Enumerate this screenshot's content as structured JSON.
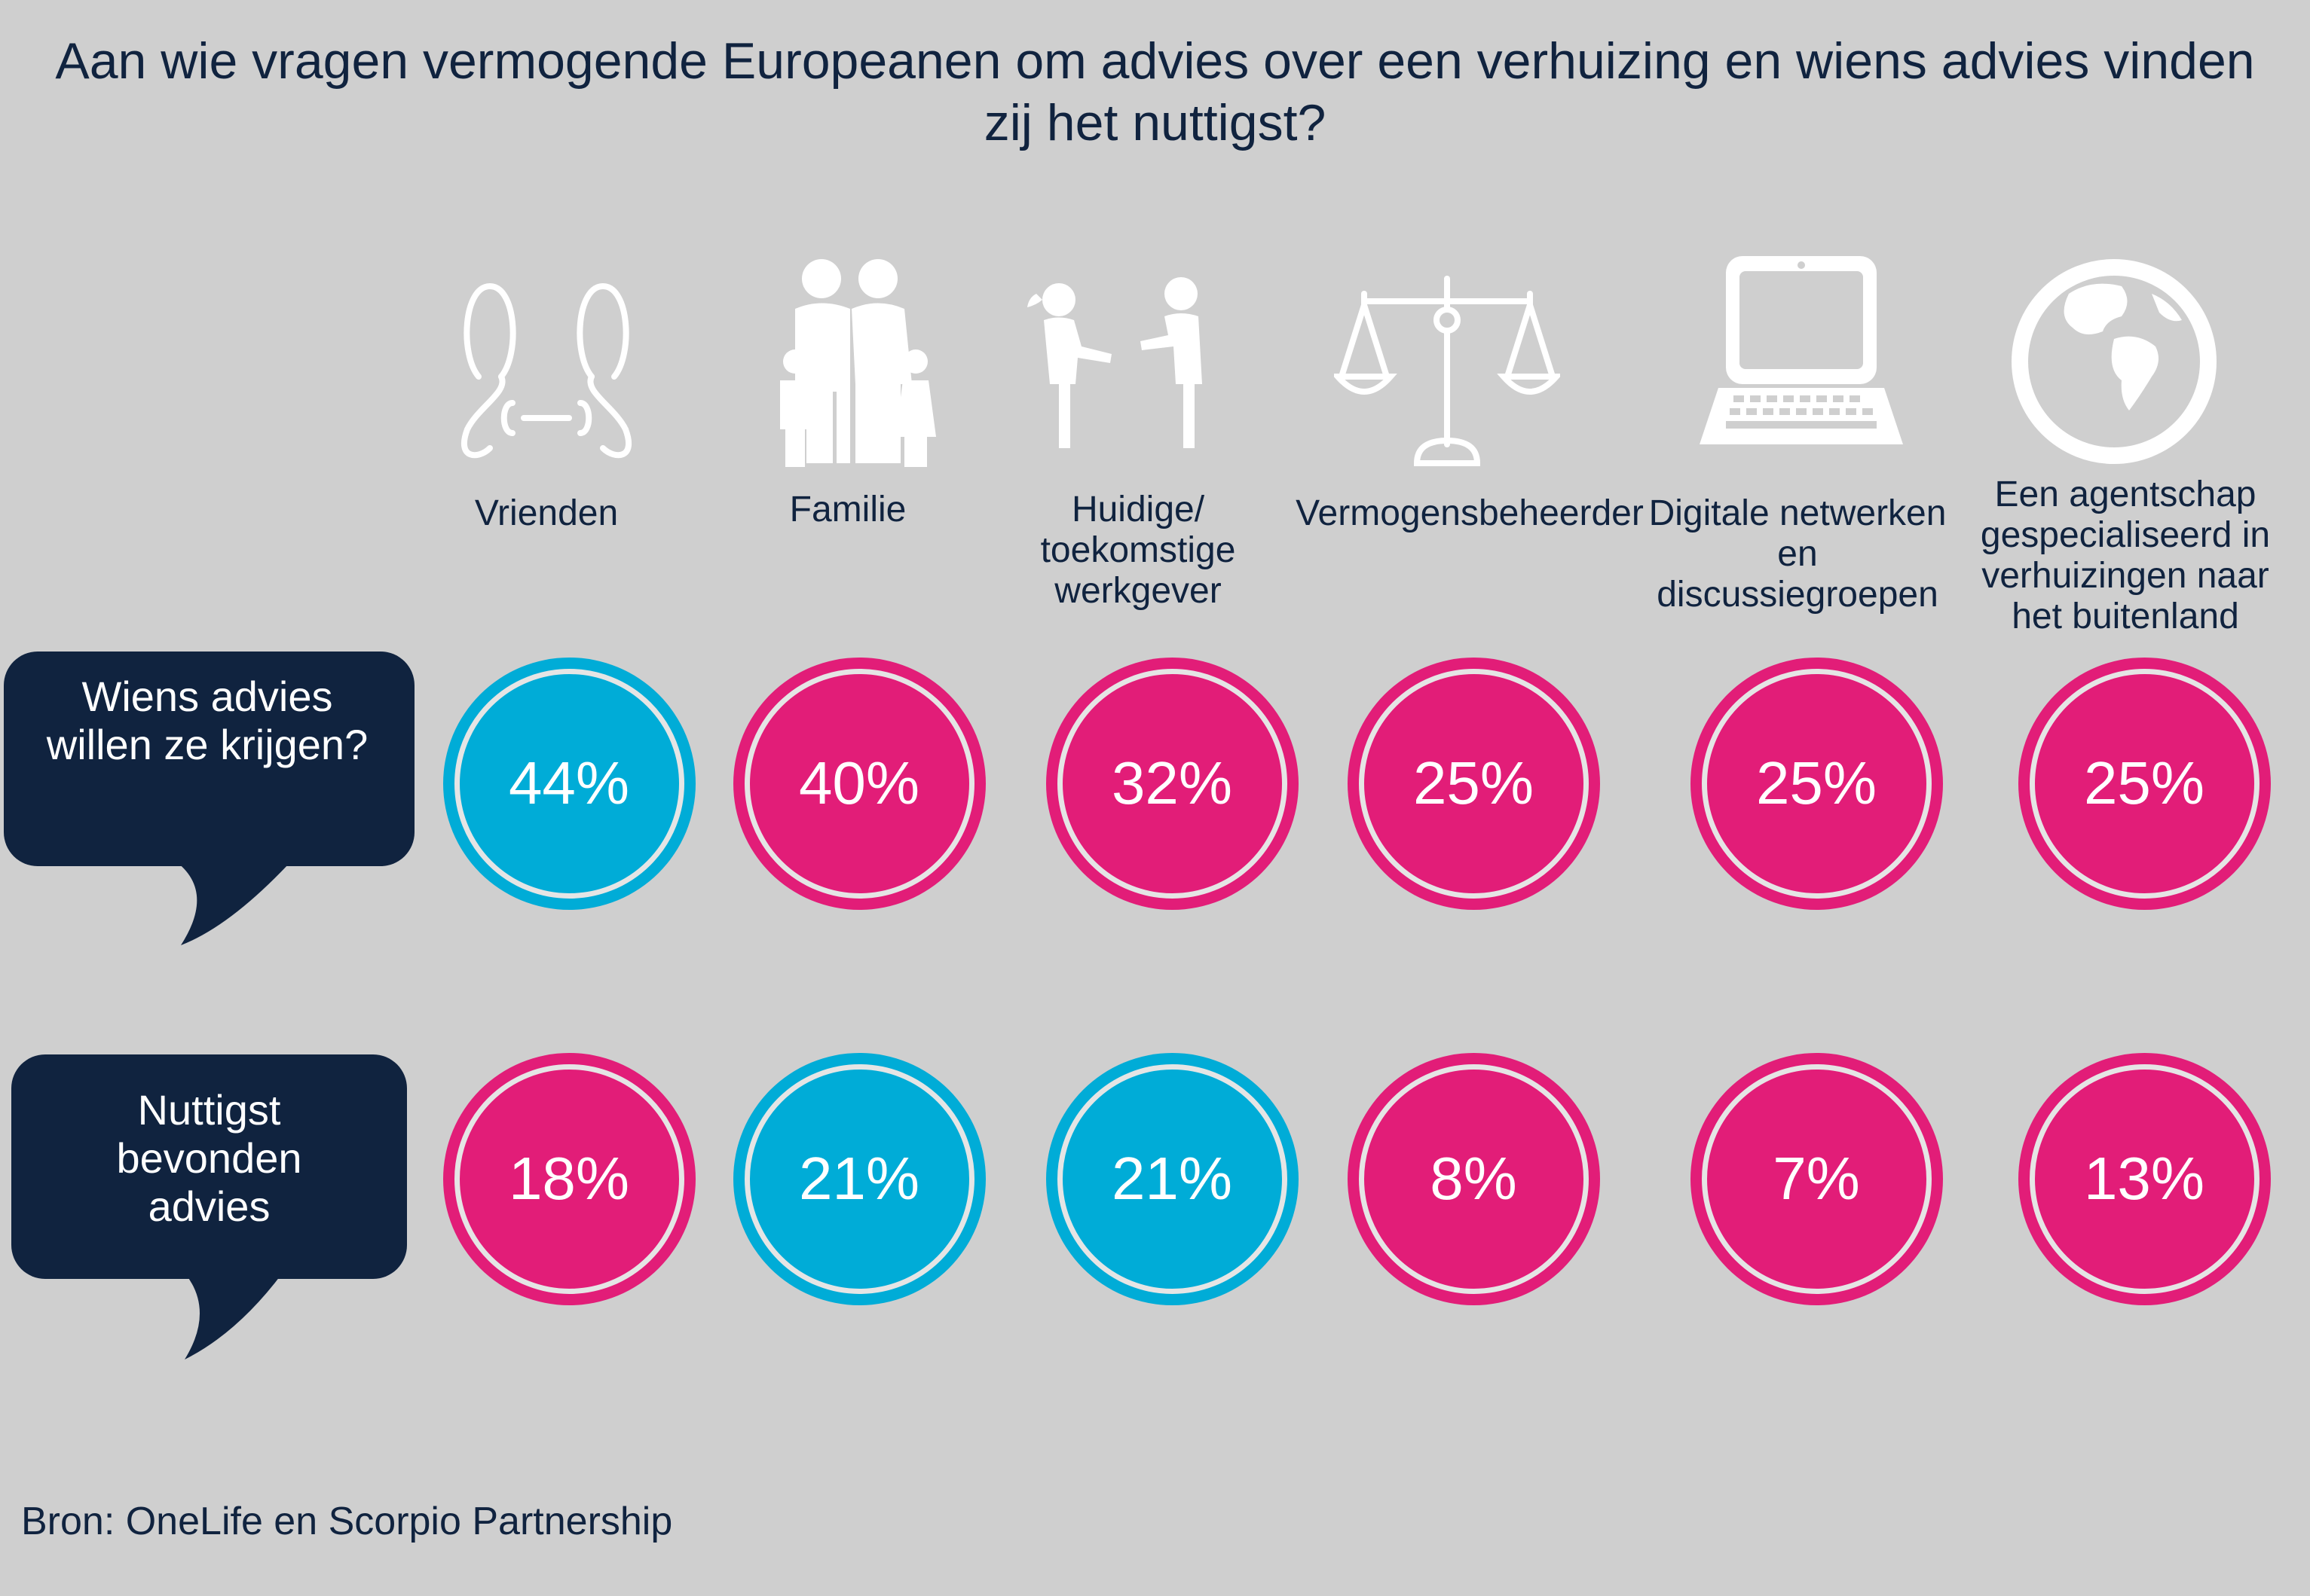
{
  "title": "Aan wie vragen vermogende Europeanen om advies over een verhuizing en wiens advies vinden zij het nuttigst?",
  "categories": [
    {
      "label": "Vrienden",
      "icon": "friends-icon"
    },
    {
      "label": "Familie",
      "icon": "family-icon"
    },
    {
      "label": "Huidige/ toekomstige werkgever",
      "icon": "handshake-icon"
    },
    {
      "label": "Vermogensbeheerder",
      "icon": "scales-icon"
    },
    {
      "label": "Digitale netwerken en discussiegroepen",
      "icon": "laptop-icon"
    },
    {
      "label": "Een agentschap gespecialiseerd in verhuizingen naar het buitenland",
      "icon": "globe-icon"
    }
  ],
  "rows": [
    {
      "label": "Wiens advies willen ze krijgen?",
      "values": [
        "44%",
        "40%",
        "32%",
        "25%",
        "25%",
        "25%"
      ]
    },
    {
      "label": "Nuttigst bevonden advies",
      "values": [
        "18%",
        "21%",
        "21%",
        "8%",
        "7%",
        "13%"
      ]
    }
  ],
  "source": "Bron: OneLife en Scorpio Partnership",
  "colors": {
    "highlight": "#00acd7",
    "normal": "#e21d78",
    "bubble": "#10233f",
    "ring": "#e5e5e5",
    "icon": "#ffffff"
  },
  "chart_data": {
    "type": "table",
    "title": "Aan wie vragen vermogende Europeanen om advies over een verhuizing en wiens advies vinden zij het nuttigst?",
    "categories": [
      "Vrienden",
      "Familie",
      "Huidige/ toekomstige werkgever",
      "Vermogensbeheerder",
      "Digitale netwerken en discussiegroepen",
      "Een agentschap gespecialiseerd in verhuizingen naar het buitenland"
    ],
    "series": [
      {
        "name": "Wiens advies willen ze krijgen?",
        "values": [
          44,
          40,
          32,
          25,
          25,
          25
        ],
        "highlight": [
          true,
          false,
          false,
          false,
          false,
          false
        ]
      },
      {
        "name": "Nuttigst bevonden advies",
        "values": [
          18,
          21,
          21,
          8,
          7,
          13
        ],
        "highlight": [
          false,
          true,
          true,
          false,
          false,
          false
        ]
      }
    ],
    "unit": "%"
  }
}
